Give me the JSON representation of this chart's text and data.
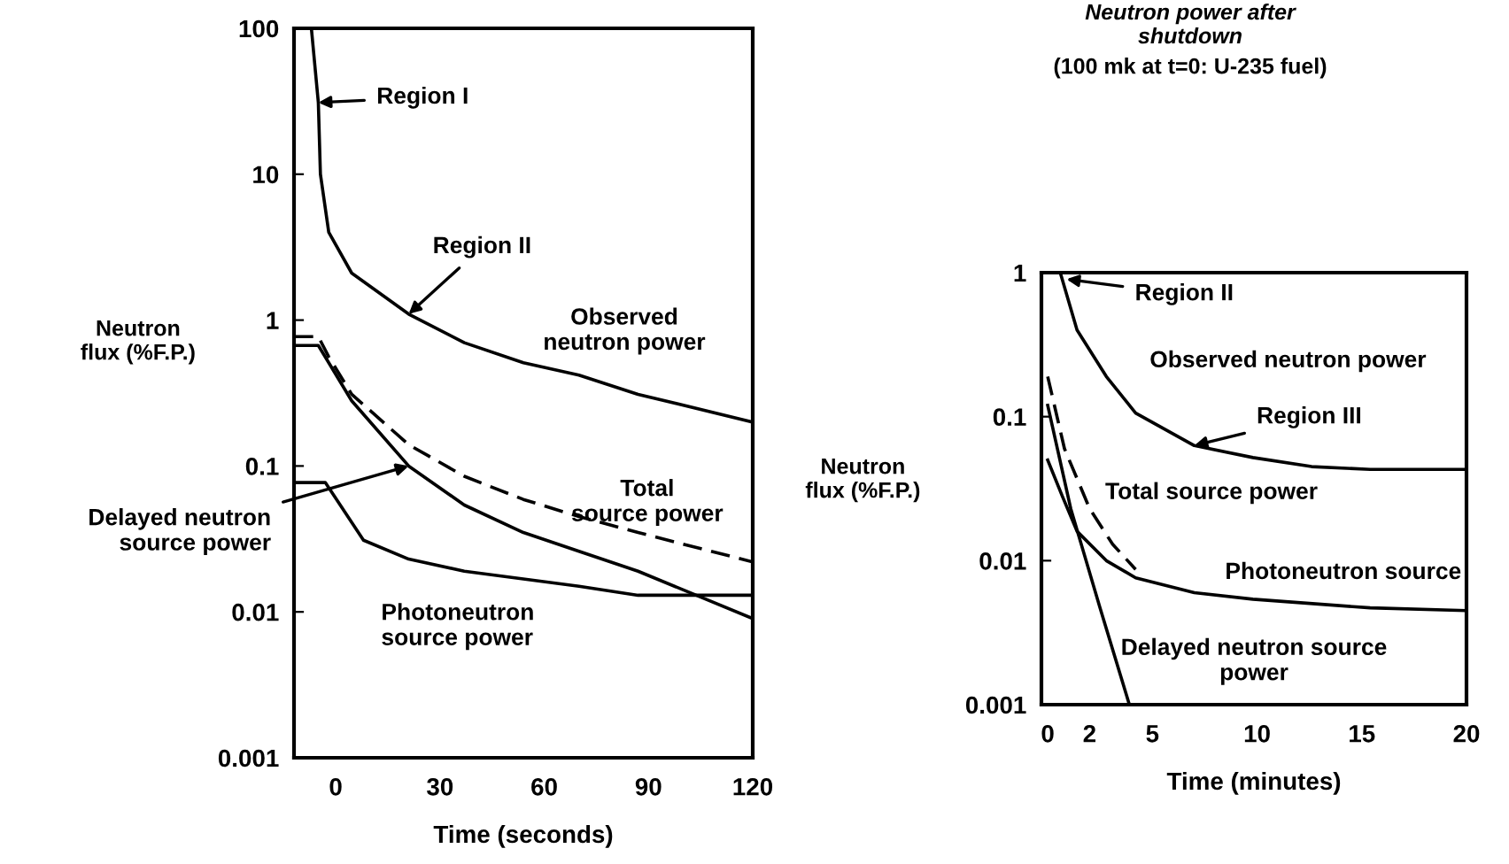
{
  "chart_data": [
    {
      "type": "line",
      "xlabel": "Time (seconds)",
      "ylabel": "Neutron\nflux (%F.P.)",
      "log": "y",
      "xlim": [
        -12,
        120
      ],
      "ylim": [
        0.001,
        100
      ],
      "xticks": [
        0,
        30,
        60,
        90,
        120
      ],
      "yticks": [
        0.001,
        0.01,
        0.1,
        1,
        10,
        100
      ],
      "grid": false,
      "legend": false,
      "series": [
        {
          "color": "#000000",
          "line_style": "solid",
          "x": [
            -7,
            -5,
            -4.4,
            -2,
            4.6,
            21,
            37,
            54,
            70,
            87,
            120
          ],
          "values": [
            100,
            31,
            10,
            4,
            2.1,
            1.1,
            0.7,
            0.51,
            0.42,
            0.31,
            0.2
          ]
        },
        {
          "color": "#000000",
          "line_style": "dashed",
          "x": [
            -12,
            -5,
            -2,
            4.6,
            21,
            37,
            54,
            70,
            87,
            120
          ],
          "values": [
            0.77,
            0.77,
            0.56,
            0.31,
            0.14,
            0.085,
            0.059,
            0.045,
            0.035,
            0.022
          ]
        },
        {
          "color": "#000000",
          "line_style": "solid",
          "x": [
            -12,
            -5,
            -2,
            4.6,
            21,
            37,
            54,
            70,
            87,
            120
          ],
          "values": [
            0.67,
            0.67,
            0.51,
            0.28,
            0.1,
            0.054,
            0.035,
            0.026,
            0.019,
            0.009
          ]
        },
        {
          "color": "#000000",
          "line_style": "solid",
          "x": [
            -12,
            -3,
            1.3,
            8,
            21,
            37,
            70,
            87,
            120
          ],
          "values": [
            0.077,
            0.077,
            0.054,
            0.031,
            0.023,
            0.019,
            0.015,
            0.013,
            0.013
          ]
        }
      ],
      "annotations": [
        {
          "text": "Region I",
          "x": -5,
          "y": 31
        },
        {
          "text": "Region II",
          "x": 21,
          "y": 1.1
        },
        "Observed\nneutron power",
        "Total\nsource power",
        {
          "text": "Delayed neutron\nsource power",
          "x": 21,
          "y": 0.1
        },
        "Photoneutron\nsource power"
      ]
    },
    {
      "type": "line",
      "title": "Neutron power after\nshutdown",
      "subtitle": "(100 mk at t=0: U-235 fuel)",
      "xlabel": "Time (minutes)",
      "ylabel": "Neutron\nflux (%F.P.)",
      "log": "y",
      "xlim": [
        -0.3,
        20
      ],
      "ylim": [
        0.001,
        1
      ],
      "xticks": [
        0,
        2,
        5,
        10,
        15,
        20
      ],
      "yticks": [
        0.001,
        0.01,
        0.1,
        1
      ],
      "grid": false,
      "legend": false,
      "series": [
        {
          "color": "#000000",
          "line_style": "solid",
          "x": [
            0.6,
            1.4,
            2.8,
            4.2,
            7,
            9.8,
            12.6,
            15.4,
            20
          ],
          "values": [
            1,
            0.4,
            0.19,
            0.106,
            0.063,
            0.052,
            0.045,
            0.043,
            0.043
          ]
        },
        {
          "color": "#000000",
          "line_style": "dashed",
          "x": [
            0,
            0.8,
            2,
            3.1,
            4.2
          ],
          "values": [
            0.19,
            0.06,
            0.023,
            0.013,
            0.0087
          ]
        },
        {
          "color": "#000000",
          "line_style": "solid",
          "x": [
            0,
            0.7,
            1.4,
            2.8,
            4.2,
            7,
            9.8,
            15.4,
            20
          ],
          "values": [
            0.05,
            0.028,
            0.016,
            0.01,
            0.0076,
            0.006,
            0.0054,
            0.0047,
            0.0045
          ]
        },
        {
          "color": "#000000",
          "line_style": "solid",
          "x": [
            0,
            1.1,
            2.5,
            3.9
          ],
          "values": [
            0.12,
            0.023,
            0.0047,
            0.001
          ]
        }
      ],
      "annotations": [
        {
          "text": "Region II",
          "x": 0.9,
          "y": 0.9
        },
        "Observed neutron power",
        {
          "text": "Region III",
          "x": 7,
          "y": 0.063
        },
        "Total source power",
        "Photoneutron source",
        "Delayed neutron source\npower"
      ]
    }
  ]
}
